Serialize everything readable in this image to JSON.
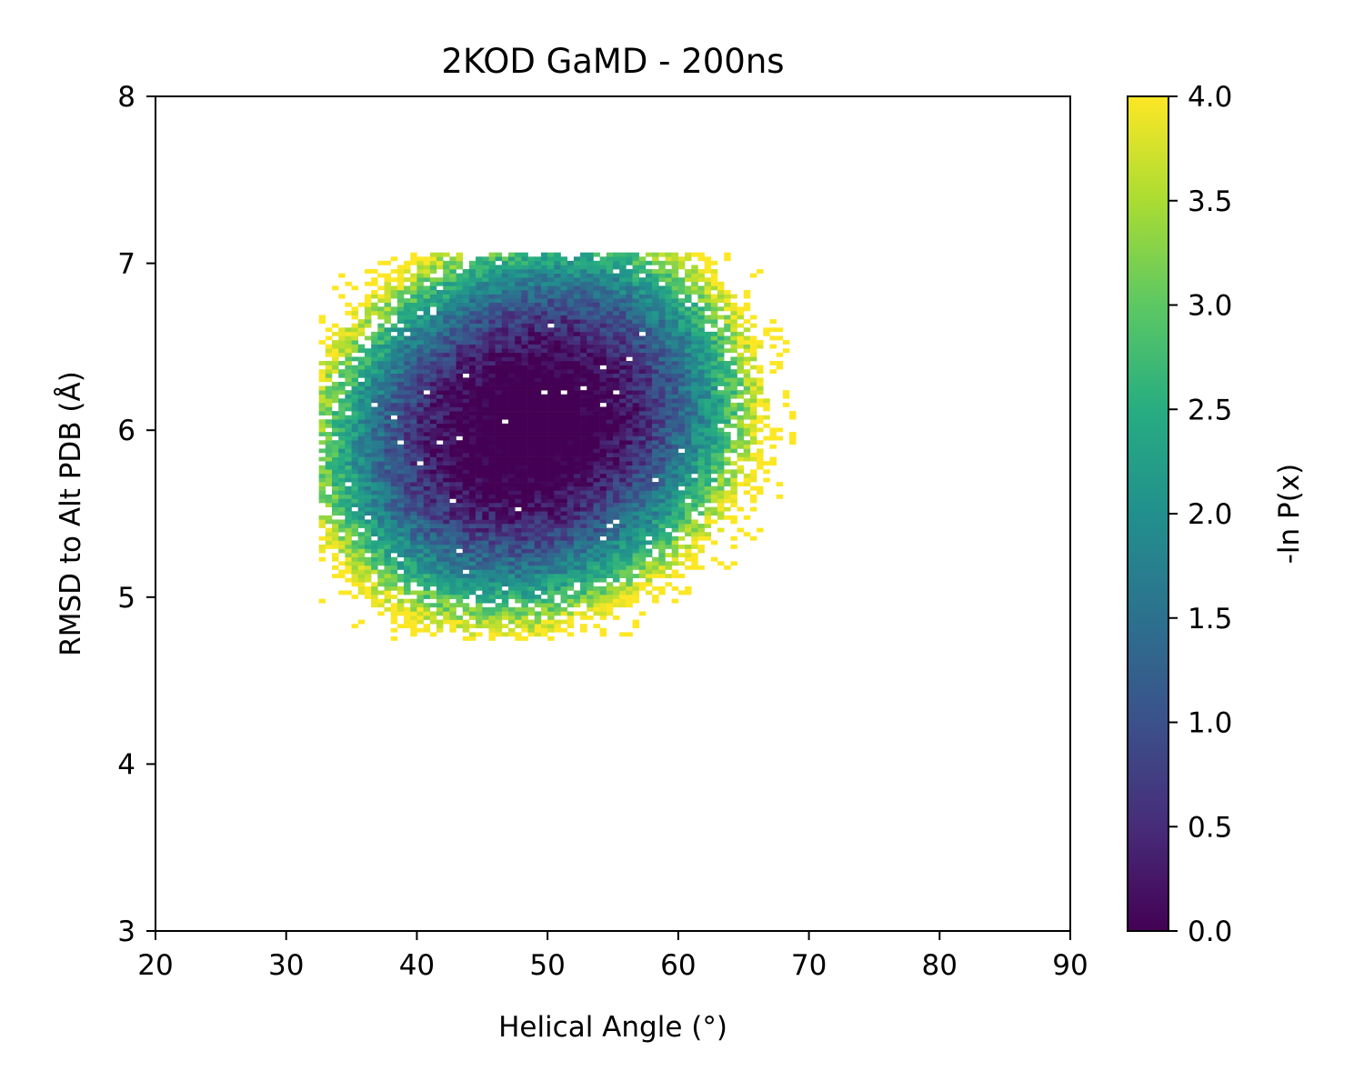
{
  "chart_data": {
    "type": "heatmap",
    "title": "2KOD GaMD - 200ns",
    "xlabel": "Helical Angle (°)",
    "ylabel": "RMSD to Alt PDB (Å)",
    "xlim": [
      20,
      90
    ],
    "ylim": [
      3,
      8
    ],
    "xticks": [
      20,
      30,
      40,
      50,
      60,
      70,
      80,
      90
    ],
    "yticks": [
      3,
      4,
      5,
      6,
      7,
      8
    ],
    "colormap": "viridis",
    "colorbar": {
      "label": "-ln P(x)",
      "min": 0.0,
      "max": 4.0,
      "ticks": [
        "0.0",
        "0.5",
        "1.0",
        "1.5",
        "2.0",
        "2.5",
        "3.0",
        "3.5",
        "4.0"
      ]
    },
    "bin_width_x": 0.5,
    "bin_height_y": 0.025,
    "distribution": {
      "minimum_free_energy_centers": [
        [
          46.5,
          5.9
        ],
        [
          51.0,
          6.15
        ]
      ],
      "minimum_value": 0.0,
      "occupied_x_range": [
        32.5,
        69.0
      ],
      "occupied_y_range": [
        4.74,
        7.05
      ],
      "correlation": "positive"
    },
    "grid": false,
    "legend": "none",
    "colorbar_position": "right"
  }
}
